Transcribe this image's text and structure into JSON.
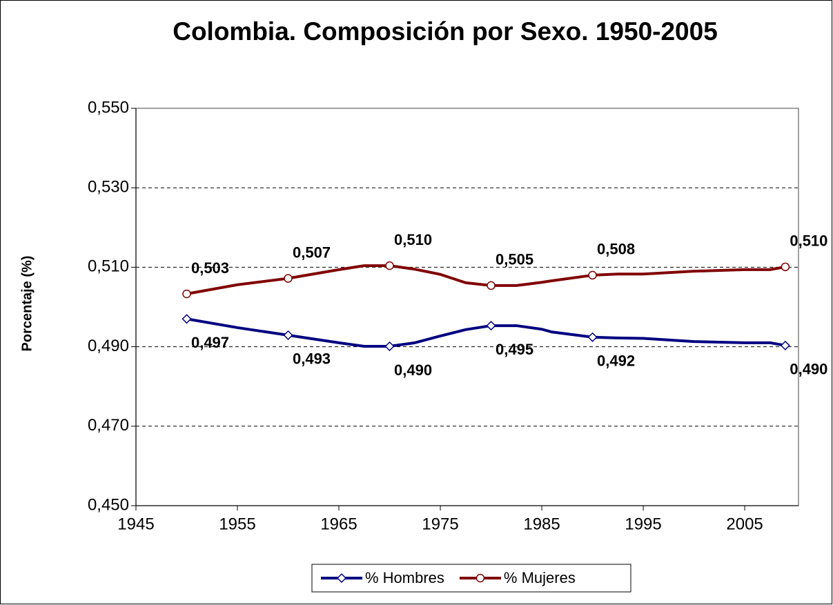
{
  "chart_data": {
    "type": "line",
    "title": "Colombia. Composición por Sexo. 1950-2005",
    "y_label": "Porcentaje (%)",
    "x": [
      1950,
      1955,
      1960,
      1965,
      1967.5,
      1970,
      1972.5,
      1975,
      1977.5,
      1980,
      1982.5,
      1985,
      1986,
      1990,
      1992.5,
      1995,
      2000,
      2005,
      2007.5,
      2009
    ],
    "series": [
      {
        "name": "% Hombres",
        "color": "#000080",
        "marker": "diamond",
        "values": [
          0.497,
          0.4948,
          0.4929,
          0.491,
          0.4901,
          0.4901,
          0.491,
          0.4927,
          0.4943,
          0.4953,
          0.4953,
          0.4944,
          0.4937,
          0.4924,
          0.4922,
          0.4921,
          0.4913,
          0.491,
          0.491,
          0.4903
        ],
        "value_labels": [
          "0,497",
          null,
          "0,493",
          null,
          null,
          "0,490",
          null,
          null,
          null,
          "0,495",
          null,
          null,
          null,
          "0,492",
          null,
          null,
          null,
          null,
          null,
          "0,490"
        ]
      },
      {
        "name": "% Mujeres",
        "color": "#800000",
        "marker": "circle",
        "values": [
          0.5033,
          0.5056,
          0.5072,
          0.5094,
          0.5104,
          0.5104,
          0.5095,
          0.5082,
          0.5061,
          0.5054,
          0.5054,
          0.5062,
          0.5066,
          0.508,
          0.5083,
          0.5083,
          0.509,
          0.5094,
          0.5094,
          0.5101
        ],
        "value_labels": [
          "0,503",
          null,
          "0,507",
          null,
          null,
          "0,510",
          null,
          null,
          null,
          "0,505",
          null,
          null,
          null,
          "0,508",
          null,
          null,
          null,
          null,
          null,
          "0,510"
        ]
      }
    ],
    "xlim": [
      1945,
      2010.3
    ],
    "xticks": [
      1945,
      1955,
      1965,
      1975,
      1985,
      1995,
      2005
    ],
    "ylim": [
      0.45,
      0.55
    ],
    "yticks": [
      {
        "value": 0.45,
        "label": "0,450"
      },
      {
        "value": 0.47,
        "label": "0,470"
      },
      {
        "value": 0.49,
        "label": "0,490"
      },
      {
        "value": 0.51,
        "label": "0,510"
      },
      {
        "value": 0.53,
        "label": "0,530"
      },
      {
        "value": 0.55,
        "label": "0,550"
      }
    ],
    "grid": true,
    "legend": "bottom"
  }
}
